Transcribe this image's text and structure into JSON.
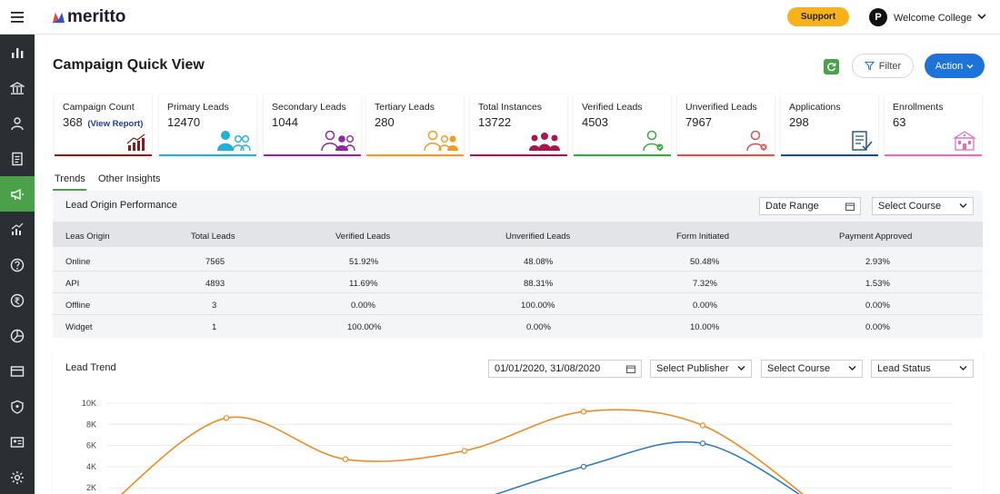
{
  "app": {
    "logo": "meritto",
    "support_label": "Support",
    "user_initial": "P",
    "college": "Welcome College"
  },
  "sidebar": {
    "items": [
      "bar-chart-icon",
      "institution-icon",
      "user-icon",
      "document-icon",
      "megaphone-icon",
      "trend-chart-icon",
      "help-icon",
      "rupee-icon",
      "pie-chart-icon",
      "card-icon",
      "shield-icon",
      "id-card-icon",
      "settings-icon"
    ],
    "active_index": 4
  },
  "page": {
    "title": "Campaign Quick View",
    "filter_label": "Filter",
    "action_label": "Action"
  },
  "cards": [
    {
      "label": "Campaign Count",
      "value": "368",
      "link": "(View Report)",
      "icon": "growth-chart-icon",
      "color": "#8b1a1a"
    },
    {
      "label": "Primary Leads",
      "value": "12470",
      "icon": "users-icon",
      "color": "#1fb1d8"
    },
    {
      "label": "Secondary Leads",
      "value": "1044",
      "icon": "users-icon",
      "color": "#8e2a9c"
    },
    {
      "label": "Tertiary Leads",
      "value": "280",
      "icon": "users-icon",
      "color": "#f49a1c"
    },
    {
      "label": "Total Instances",
      "value": "13722",
      "icon": "group-icon",
      "color": "#a8174a"
    },
    {
      "label": "Verified Leads",
      "value": "4503",
      "icon": "verified-user-icon",
      "color": "#3aa844"
    },
    {
      "label": "Unverified Leads",
      "value": "7967",
      "icon": "unverified-user-icon",
      "color": "#d9534f"
    },
    {
      "label": "Applications",
      "value": "298",
      "icon": "application-form-icon",
      "color": "#1d4e89"
    },
    {
      "label": "Enrollments",
      "value": "63",
      "icon": "building-icon",
      "color": "#e36fbb"
    }
  ],
  "tabs": [
    "Trends",
    "Other Insights"
  ],
  "origin_panel": {
    "title": "Lead Origin Performance",
    "date_range": "Date Range",
    "course_select": "Select Course",
    "columns": [
      "Leas Origin",
      "Total Leads",
      "Verified Leads",
      "Unverified Leads",
      "Form Initiated",
      "Payment Approved"
    ],
    "rows": [
      [
        "Online",
        "7565",
        "51.92%",
        "48.08%",
        "50.48%",
        "2.93%"
      ],
      [
        "API",
        "4893",
        "11.69%",
        "88.31%",
        "7.32%",
        "1.53%"
      ],
      [
        "Offline",
        "3",
        "0.00%",
        "100.00%",
        "0.00%",
        "0.00%"
      ],
      [
        "Widget",
        "1",
        "100.00%",
        "0.00%",
        "10.00%",
        "0.00%"
      ]
    ]
  },
  "trend_panel": {
    "title": "Lead Trend",
    "date_value": "01/01/2020, 31/08/2020",
    "publisher_select": "Select Publisher",
    "course_select": "Select Course",
    "status_select": "Lead Status"
  },
  "chart_data": {
    "type": "line",
    "y_ticks": [
      "10K",
      "8K",
      "6K",
      "4K",
      "2K"
    ],
    "ylim": [
      0,
      10000
    ],
    "grid": true,
    "series": [
      {
        "color": "#f08a24",
        "points": [
          [
            0,
            200
          ],
          [
            1,
            8600
          ],
          [
            2,
            4700
          ],
          [
            3,
            5500
          ],
          [
            4,
            9200
          ],
          [
            5,
            7900
          ],
          [
            6,
            0
          ]
        ]
      },
      {
        "color": "#2b7bbf",
        "points": [
          [
            2.9,
            0
          ],
          [
            4,
            4000
          ],
          [
            5,
            6200
          ],
          [
            6,
            0
          ]
        ]
      }
    ],
    "colors": {
      "orange": "#f08a24",
      "blue": "#2b7bbf"
    }
  }
}
